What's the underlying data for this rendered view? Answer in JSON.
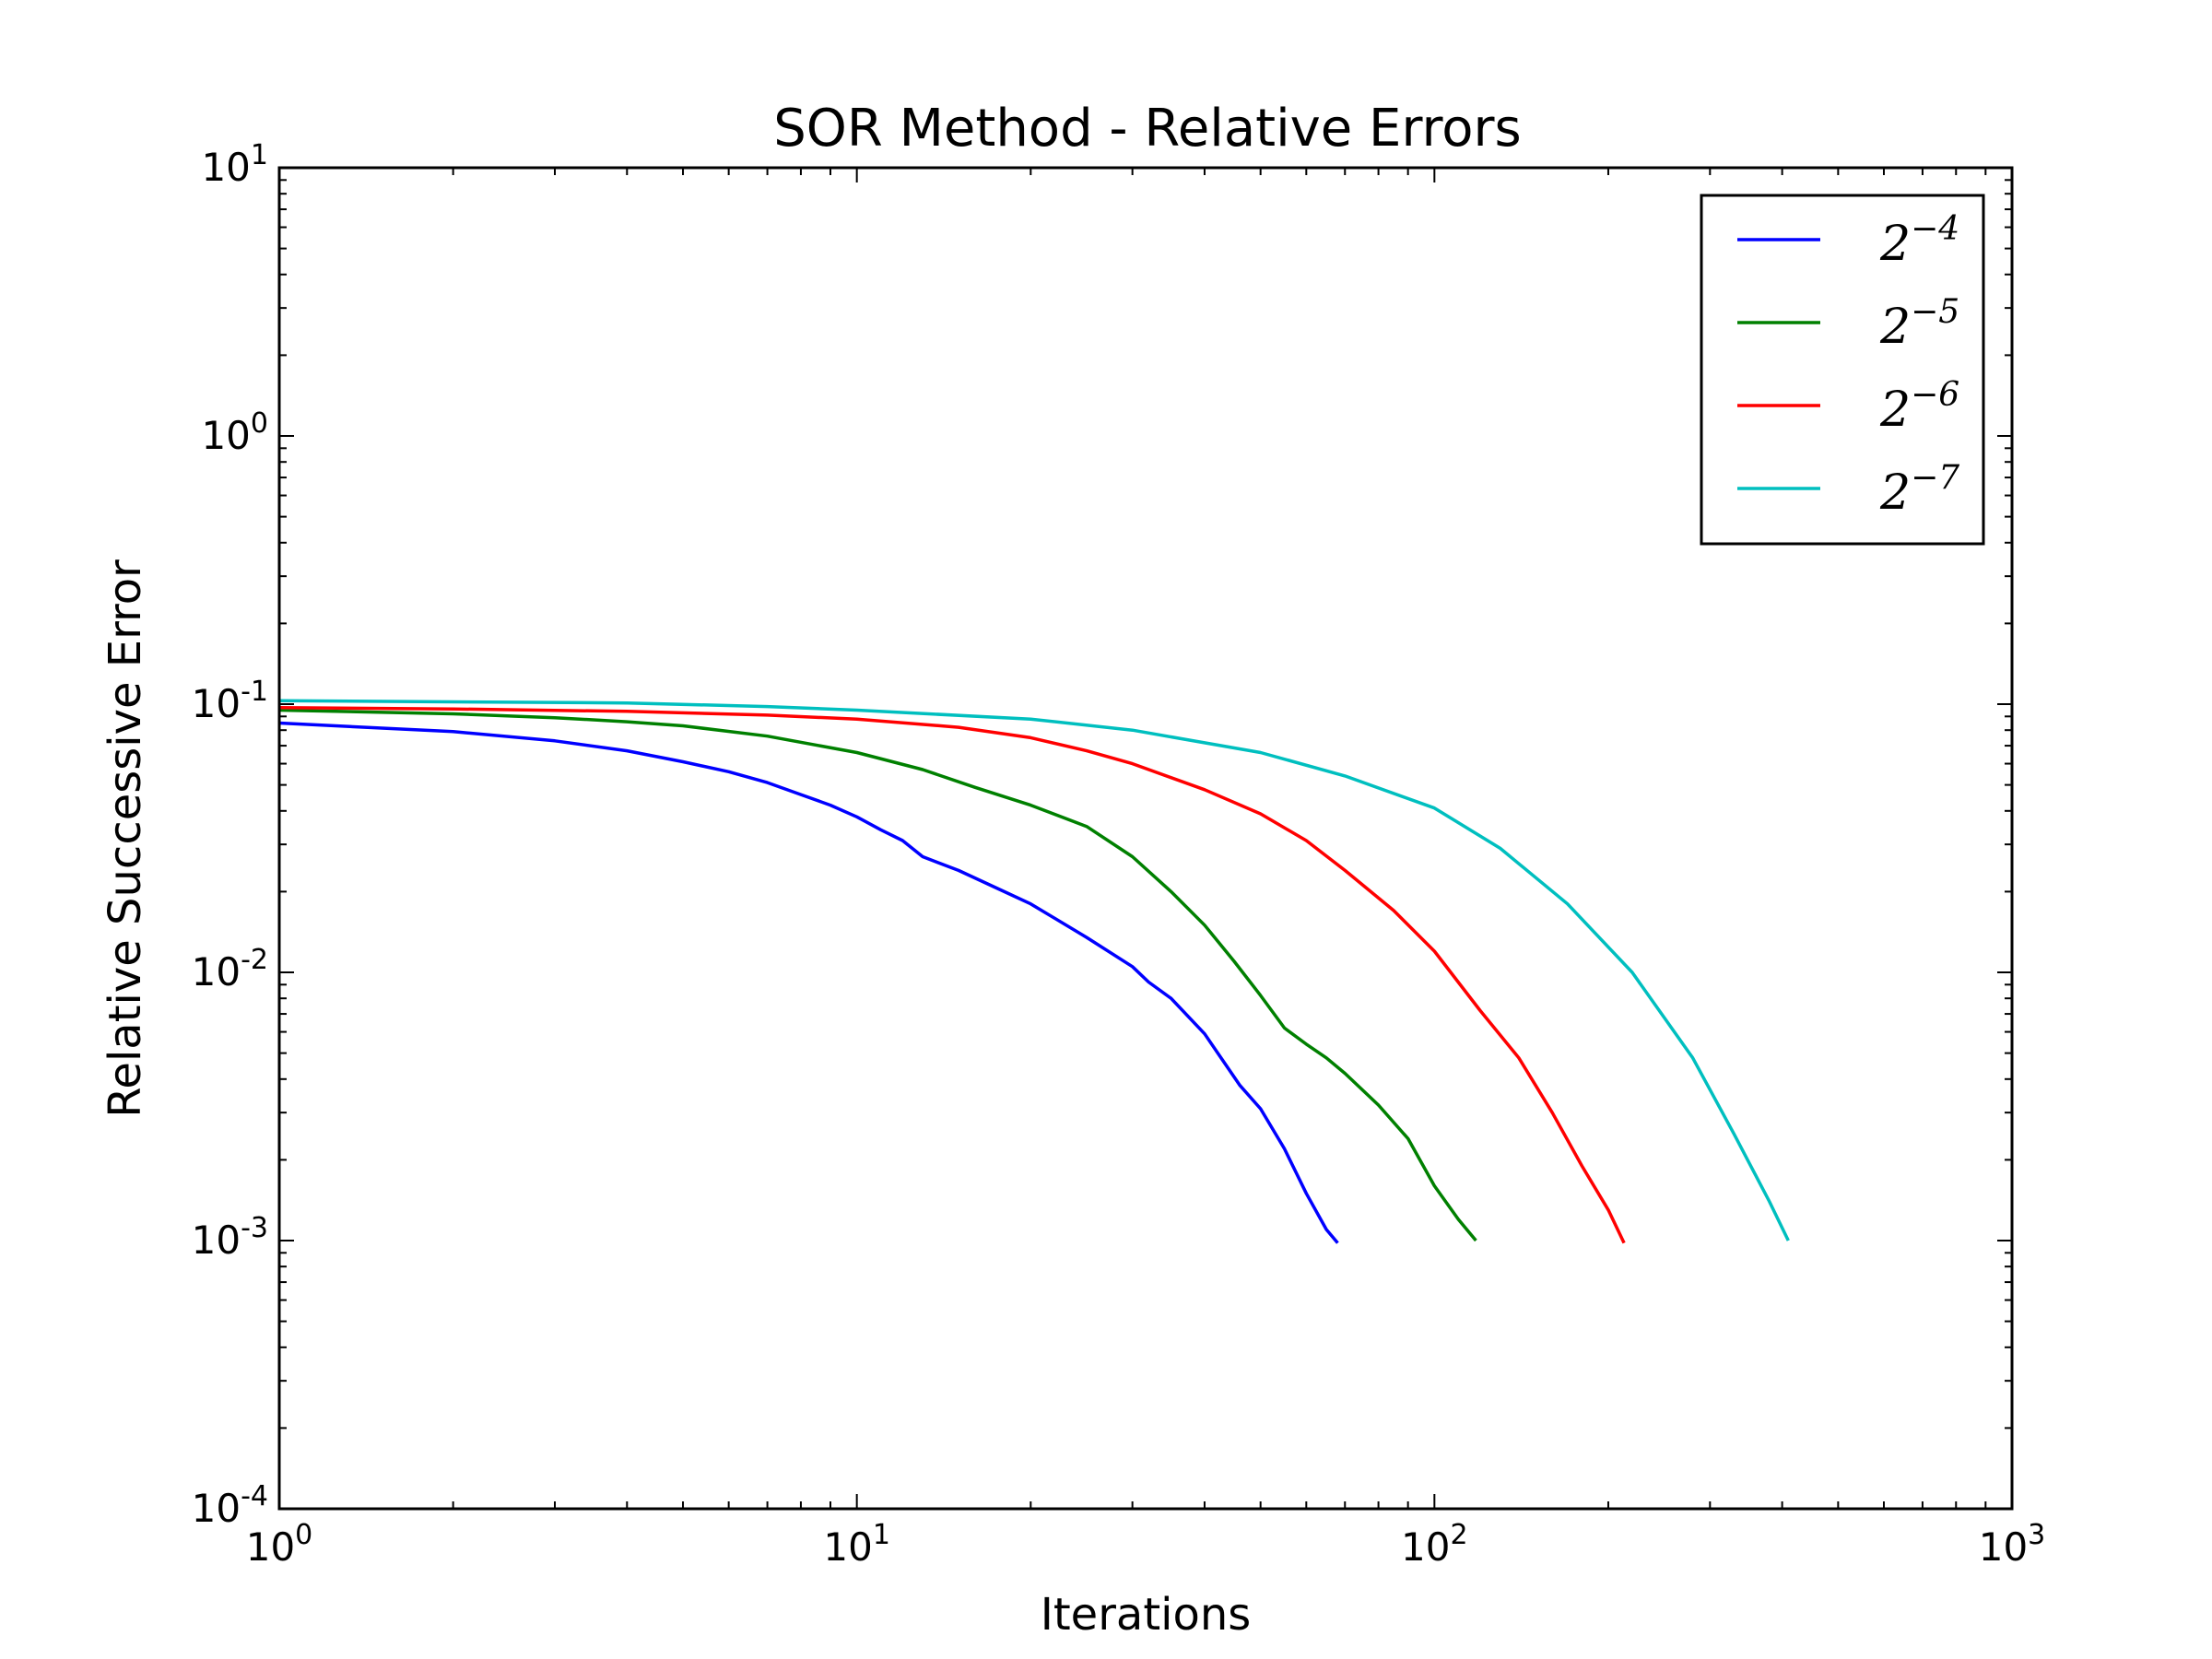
{
  "chart_data": {
    "type": "line",
    "title": "SOR Method - Relative Errors",
    "xlabel": "Iterations",
    "ylabel": "Relative Successive Error",
    "xscale": "log",
    "yscale": "log",
    "xlim": [
      1,
      1000
    ],
    "ylim": [
      0.0001,
      10
    ],
    "x_ticks": [
      {
        "base": "10",
        "exp": "0",
        "value": 1
      },
      {
        "base": "10",
        "exp": "1",
        "value": 10
      },
      {
        "base": "10",
        "exp": "2",
        "value": 100
      },
      {
        "base": "10",
        "exp": "3",
        "value": 1000
      }
    ],
    "y_ticks": [
      {
        "base": "10",
        "exp": "1",
        "value": 10
      },
      {
        "base": "10",
        "exp": "0",
        "value": 1
      },
      {
        "base": "10",
        "exp": "-1",
        "value": 0.1
      },
      {
        "base": "10",
        "exp": "-2",
        "value": 0.01
      },
      {
        "base": "10",
        "exp": "-3",
        "value": 0.001
      },
      {
        "base": "10",
        "exp": "-4",
        "value": 0.0001
      }
    ],
    "grid": false,
    "legend_position": "top-right",
    "series": [
      {
        "name": "2^-4",
        "label_base": "2",
        "label_exp": "−4",
        "color": "#0000ff",
        "x": [
          1,
          2,
          3,
          4,
          5,
          6,
          7,
          8,
          9,
          10,
          11,
          12,
          13,
          15,
          18,
          20,
          25,
          30,
          32,
          35,
          40,
          43,
          46,
          50,
          55,
          60,
          65,
          68
        ],
        "y": [
          0.085,
          0.079,
          0.073,
          0.067,
          0.061,
          0.056,
          0.051,
          0.046,
          0.042,
          0.038,
          0.034,
          0.031,
          0.027,
          0.024,
          0.02,
          0.018,
          0.0135,
          0.0105,
          0.0092,
          0.008,
          0.0059,
          0.0047,
          0.0038,
          0.0031,
          0.0022,
          0.0015,
          0.0011,
          0.00098
        ]
      },
      {
        "name": "2^-5",
        "label_base": "2",
        "label_exp": "−5",
        "color": "#008000",
        "x": [
          1,
          2,
          3,
          4,
          5,
          7,
          10,
          13,
          16,
          20,
          25,
          30,
          35,
          40,
          45,
          50,
          55,
          60,
          65,
          70,
          80,
          90,
          100,
          110,
          118
        ],
        "y": [
          0.095,
          0.092,
          0.089,
          0.086,
          0.083,
          0.076,
          0.066,
          0.057,
          0.049,
          0.042,
          0.035,
          0.027,
          0.02,
          0.015,
          0.011,
          0.0082,
          0.0062,
          0.0054,
          0.0048,
          0.0042,
          0.0032,
          0.0024,
          0.0016,
          0.0012,
          0.001
        ]
      },
      {
        "name": "2^-6",
        "label_base": "2",
        "label_exp": "−6",
        "color": "#ff0000",
        "x": [
          1,
          2,
          4,
          7,
          10,
          15,
          20,
          25,
          30,
          40,
          50,
          60,
          70,
          85,
          100,
          120,
          140,
          160,
          180,
          200,
          213
        ],
        "y": [
          0.097,
          0.096,
          0.094,
          0.091,
          0.088,
          0.082,
          0.075,
          0.067,
          0.06,
          0.048,
          0.039,
          0.031,
          0.024,
          0.017,
          0.012,
          0.0072,
          0.0048,
          0.003,
          0.0019,
          0.0013,
          0.00098
        ]
      },
      {
        "name": "2^-7",
        "label_base": "2",
        "label_exp": "−7",
        "color": "#00bfbf",
        "x": [
          1,
          2,
          4,
          7,
          10,
          20,
          30,
          50,
          70,
          100,
          130,
          170,
          220,
          280,
          330,
          380,
          410
        ],
        "y": [
          0.103,
          0.102,
          0.101,
          0.098,
          0.095,
          0.088,
          0.08,
          0.066,
          0.054,
          0.041,
          0.029,
          0.018,
          0.01,
          0.0048,
          0.0025,
          0.0014,
          0.001
        ]
      }
    ]
  }
}
